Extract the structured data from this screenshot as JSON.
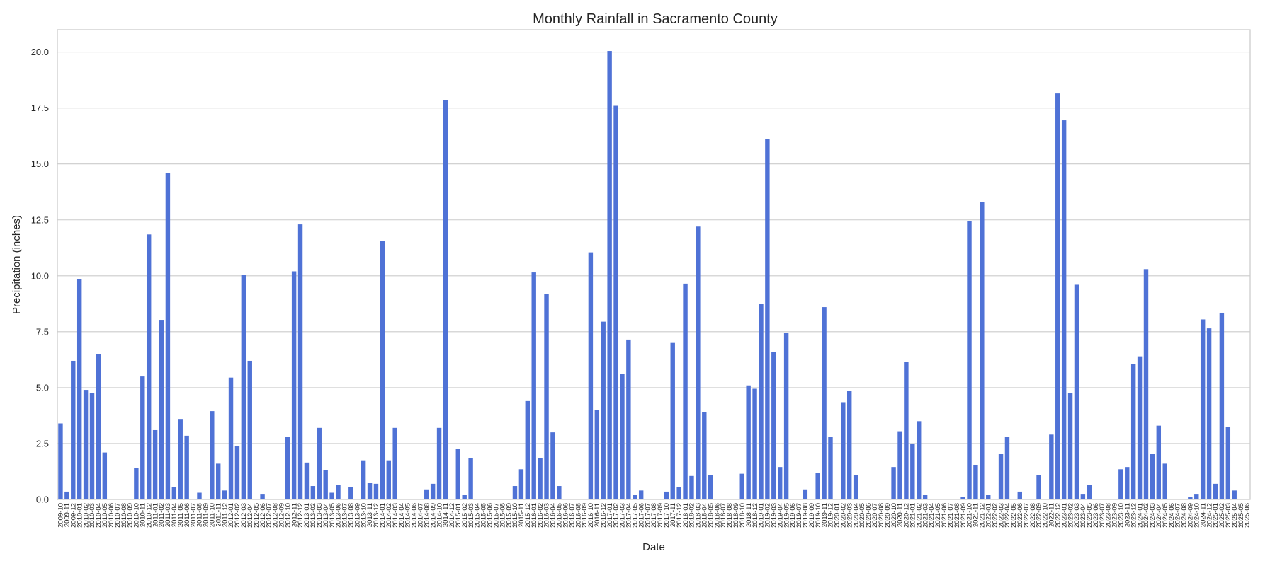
{
  "chart_data": {
    "type": "bar",
    "title": "Monthly Rainfall in Sacramento County",
    "xlabel": "Date",
    "ylabel": "Precipitation (inches)",
    "ylim": [
      0,
      21
    ],
    "yticks": [
      0.0,
      2.5,
      5.0,
      7.5,
      10.0,
      12.5,
      15.0,
      17.5,
      20.0
    ],
    "ytick_labels": [
      "0.0",
      "2.5",
      "5.0",
      "7.5",
      "10.0",
      "12.5",
      "15.0",
      "17.5",
      "20.0"
    ],
    "grid": "horizontal",
    "color": "#4f72d6",
    "categories": [
      "2009-10",
      "2009-11",
      "2009-12",
      "2010-01",
      "2010-02",
      "2010-03",
      "2010-04",
      "2010-05",
      "2010-06",
      "2010-07",
      "2010-08",
      "2010-09",
      "2010-10",
      "2010-11",
      "2010-12",
      "2011-01",
      "2011-02",
      "2011-03",
      "2011-04",
      "2011-05",
      "2011-06",
      "2011-07",
      "2011-08",
      "2011-09",
      "2011-10",
      "2011-11",
      "2011-12",
      "2012-01",
      "2012-02",
      "2012-03",
      "2012-04",
      "2012-05",
      "2012-06",
      "2012-07",
      "2012-08",
      "2012-09",
      "2012-10",
      "2012-11",
      "2012-12",
      "2013-01",
      "2013-02",
      "2013-03",
      "2013-04",
      "2013-05",
      "2013-06",
      "2013-07",
      "2013-08",
      "2013-09",
      "2013-10",
      "2013-11",
      "2013-12",
      "2014-01",
      "2014-02",
      "2014-03",
      "2014-04",
      "2014-05",
      "2014-06",
      "2014-07",
      "2014-08",
      "2014-09",
      "2014-10",
      "2014-11",
      "2014-12",
      "2015-01",
      "2015-02",
      "2015-03",
      "2015-04",
      "2015-05",
      "2015-06",
      "2015-07",
      "2015-08",
      "2015-09",
      "2015-10",
      "2015-11",
      "2015-12",
      "2016-01",
      "2016-02",
      "2016-03",
      "2016-04",
      "2016-05",
      "2016-06",
      "2016-07",
      "2016-08",
      "2016-09",
      "2016-10",
      "2016-11",
      "2016-12",
      "2017-01",
      "2017-02",
      "2017-03",
      "2017-04",
      "2017-05",
      "2017-06",
      "2017-07",
      "2017-08",
      "2017-09",
      "2017-10",
      "2017-11",
      "2017-12",
      "2018-01",
      "2018-02",
      "2018-03",
      "2018-04",
      "2018-05",
      "2018-06",
      "2018-07",
      "2018-08",
      "2018-09",
      "2018-10",
      "2018-11",
      "2018-12",
      "2019-01",
      "2019-02",
      "2019-03",
      "2019-04",
      "2019-05",
      "2019-06",
      "2019-07",
      "2019-08",
      "2019-09",
      "2019-10",
      "2019-11",
      "2019-12",
      "2020-01",
      "2020-02",
      "2020-03",
      "2020-04",
      "2020-05",
      "2020-06",
      "2020-07",
      "2020-08",
      "2020-09",
      "2020-10",
      "2020-11",
      "2020-12",
      "2021-01",
      "2021-02",
      "2021-03",
      "2021-04",
      "2021-05",
      "2021-06",
      "2021-07",
      "2021-08",
      "2021-09",
      "2021-10",
      "2021-11",
      "2021-12",
      "2022-01",
      "2022-02",
      "2022-03",
      "2022-04",
      "2022-05",
      "2022-06",
      "2022-07",
      "2022-08",
      "2022-09",
      "2022-10",
      "2022-11",
      "2022-12",
      "2023-01",
      "2023-02",
      "2023-03",
      "2023-04",
      "2023-05",
      "2023-06",
      "2023-07",
      "2023-08",
      "2023-09",
      "2023-10",
      "2023-11",
      "2023-12",
      "2024-01",
      "2024-02",
      "2024-03",
      "2024-04",
      "2024-05",
      "2024-06",
      "2024-07",
      "2024-08",
      "2024-09",
      "2024-10",
      "2024-11",
      "2024-12",
      "2025-01",
      "2025-02",
      "2025-03",
      "2025-04",
      "2025-05",
      "2025-06"
    ],
    "values": [
      3.4,
      0.35,
      6.2,
      9.85,
      4.9,
      4.75,
      6.5,
      2.1,
      0,
      0,
      0,
      0,
      1.4,
      5.5,
      11.85,
      3.1,
      8.0,
      14.6,
      0.55,
      3.6,
      2.85,
      0,
      0.3,
      0,
      3.95,
      1.6,
      0.4,
      5.45,
      2.4,
      10.05,
      6.2,
      0,
      0.25,
      0,
      0,
      0,
      2.8,
      10.2,
      12.3,
      1.65,
      0.6,
      3.2,
      1.3,
      0.3,
      0.65,
      0,
      0.55,
      0,
      1.75,
      0.75,
      0.7,
      11.55,
      1.75,
      3.2,
      0,
      0,
      0,
      0,
      0.45,
      0.7,
      3.2,
      17.85,
      0,
      2.25,
      0.2,
      1.85,
      0,
      0,
      0,
      0,
      0,
      0,
      0.6,
      1.35,
      4.4,
      10.15,
      1.85,
      9.2,
      3.0,
      0.6,
      0,
      0,
      0,
      0,
      11.05,
      4.0,
      7.95,
      20.05,
      17.6,
      5.6,
      7.15,
      0.2,
      0.4,
      0,
      0,
      0,
      0.35,
      7.0,
      0.55,
      9.65,
      1.05,
      12.2,
      3.9,
      1.1,
      0,
      0,
      0,
      0,
      1.15,
      5.1,
      4.95,
      8.75,
      16.1,
      6.6,
      1.45,
      7.45,
      0,
      0,
      0.45,
      0,
      1.2,
      8.6,
      2.8,
      0,
      4.35,
      4.85,
      1.1,
      0,
      0,
      0,
      0,
      0,
      1.45,
      3.05,
      6.15,
      2.5,
      3.5,
      0.2,
      0,
      0,
      0,
      0,
      0,
      0.1,
      12.45,
      1.55,
      13.3,
      0.2,
      0,
      2.05,
      2.8,
      0,
      0.35,
      0,
      0,
      1.1,
      0,
      2.9,
      18.15,
      16.95,
      4.75,
      9.6,
      0.25,
      0.65,
      0,
      0,
      0,
      0,
      1.35,
      1.45,
      6.05,
      6.4,
      10.3,
      2.05,
      3.3,
      1.6,
      0,
      0,
      0,
      0.1,
      0.25,
      8.05,
      7.65,
      0.7,
      8.35,
      3.25,
      0.4,
      0,
      0
    ]
  }
}
